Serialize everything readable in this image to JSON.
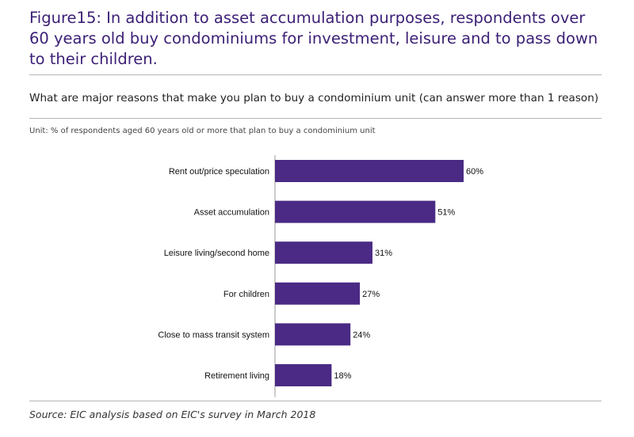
{
  "figure": {
    "title": "Figure15: In addition to asset accumulation purposes, respondents over 60 years old buy condominiums for investment, leisure and to pass down to their children.",
    "subtitle": "What are major reasons that make you plan to buy a condominium unit (can answer more than 1 reason)",
    "unit_note": "Unit: % of respondents aged 60 years old or more that plan to buy a condominium unit",
    "source": "Source: EIC analysis based on EIC's survey in March 2018"
  },
  "colors": {
    "bar": "#4a2a84",
    "title": "#3b1f75",
    "axis": "#9a9a9a"
  },
  "chart_data": {
    "type": "bar",
    "orientation": "horizontal",
    "categories": [
      "Rent out/price speculation",
      "Asset accumulation",
      "Leisure living/second home",
      "For children",
      "Close to mass transit system",
      "Retirement living"
    ],
    "values": [
      60,
      51,
      31,
      27,
      24,
      18
    ],
    "value_labels": [
      "60%",
      "51%",
      "31%",
      "27%",
      "24%",
      "18%"
    ],
    "xlim": [
      0,
      60
    ],
    "grid": false
  }
}
